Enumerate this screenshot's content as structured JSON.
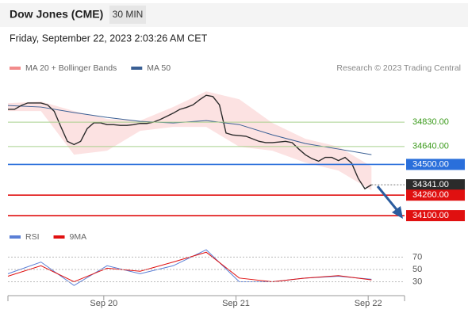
{
  "header": {
    "title": "Dow Jones (CME)",
    "interval": "30 MIN",
    "timestamp": "Friday, September 22, 2023 2:03:26 AM CET",
    "credit": "Research © 2023 Trading Central"
  },
  "chart_data": [
    {
      "type": "line",
      "xlim": [
        0,
        60
      ],
      "ylim": [
        34020,
        35165
      ],
      "x": [
        0,
        1,
        2,
        3,
        4,
        5,
        6,
        7,
        8,
        9,
        10,
        11,
        12,
        13,
        14,
        15,
        16,
        17,
        18,
        19,
        20,
        21,
        22,
        23,
        24,
        25,
        26,
        27,
        28,
        29,
        30,
        31,
        32,
        33,
        34,
        35,
        36,
        37,
        38,
        39,
        40,
        41,
        42,
        43,
        44,
        45,
        46,
        47,
        48,
        49,
        50,
        51,
        52,
        53,
        54,
        55
      ],
      "series": [
        {
          "name": "MA 20 + Bollinger Bands",
          "color": "#f28b8b",
          "band": true,
          "x": [
            0,
            5,
            10,
            15,
            20,
            25,
            30,
            35,
            40,
            45,
            50,
            55
          ],
          "upper": [
            34978,
            34991,
            34917,
            34855,
            34842,
            34948,
            35071,
            35009,
            34824,
            34700,
            34638,
            34484
          ],
          "lower": [
            34917,
            34917,
            34576,
            34607,
            34762,
            34793,
            34793,
            34638,
            34607,
            34514,
            34452,
            34298
          ]
        },
        {
          "name": "MA 50",
          "color": "#3a5f94",
          "x": [
            0,
            5,
            10,
            15,
            20,
            25,
            30,
            35,
            40,
            45,
            50,
            55
          ],
          "values": [
            34960,
            34948,
            34905,
            34867,
            34836,
            34824,
            34842,
            34811,
            34731,
            34663,
            34620,
            34576
          ]
        },
        {
          "color": "#2b2b2b",
          "values": [
            34930,
            34930,
            34960,
            34980,
            34980,
            34980,
            34965,
            34915,
            34795,
            34680,
            34655,
            34680,
            34780,
            34825,
            34825,
            34810,
            34810,
            34805,
            34805,
            34810,
            34820,
            34820,
            34830,
            34850,
            34875,
            34900,
            34930,
            34945,
            34965,
            35005,
            35040,
            35030,
            34965,
            34745,
            34730,
            34725,
            34720,
            34700,
            34680,
            34670,
            34670,
            34675,
            34680,
            34670,
            34620,
            34575,
            34545,
            34525,
            34555,
            34555,
            34530,
            34555,
            34510,
            34390,
            34310,
            34341
          ]
        }
      ],
      "levels": [
        {
          "value": 34830,
          "label": "34830.00",
          "color": "#a8d08d",
          "text": "#3a9a1a"
        },
        {
          "value": 34640,
          "label": "34640.00",
          "color": "#a8d08d",
          "text": "#3a9a1a"
        },
        {
          "value": 34500,
          "label": "34500.00",
          "color": "#2a6fdb",
          "box": "#2a6fdb"
        },
        {
          "value": 34341,
          "label": "34341.00",
          "color": "#777777",
          "box": "#2b2b2b",
          "dash": true
        },
        {
          "value": 34260,
          "label": "34260.00",
          "color": "#e01010",
          "box": "#e01010"
        },
        {
          "value": 34100,
          "label": "34100.00",
          "color": "#e01010",
          "box": "#e01010"
        }
      ]
    },
    {
      "type": "line",
      "xlim": [
        0,
        60
      ],
      "ylim": [
        10,
        86
      ],
      "yticks": [
        70,
        50,
        30
      ],
      "xticks": [
        {
          "value": 14.5,
          "label": "Sep 20"
        },
        {
          "value": 34.5,
          "label": "Sep 21"
        },
        {
          "value": 54.5,
          "label": "Sep 22"
        }
      ],
      "series": [
        {
          "name": "RSI",
          "color": "#5b7fd6",
          "x": [
            0,
            5,
            10,
            15,
            20,
            25,
            30,
            35,
            40,
            45,
            50,
            55
          ],
          "values": [
            43,
            62,
            24,
            56,
            43,
            56,
            82,
            30,
            30,
            36,
            39,
            34
          ]
        },
        {
          "name": "9MA",
          "color": "#e01010",
          "x": [
            0,
            5,
            10,
            15,
            20,
            25,
            30,
            35,
            40,
            45,
            50,
            55
          ],
          "values": [
            39,
            56,
            30,
            52,
            47,
            62,
            78,
            36,
            30,
            36,
            40,
            33
          ]
        }
      ]
    }
  ]
}
